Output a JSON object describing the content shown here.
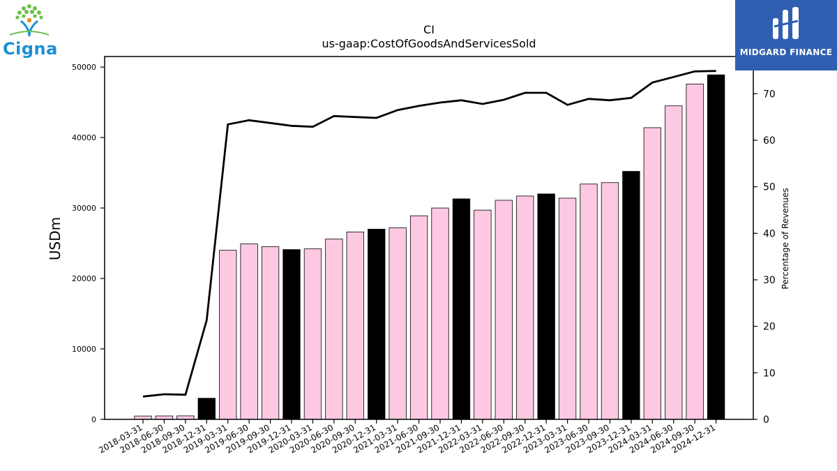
{
  "logos": {
    "left_text": "Cigna",
    "right_text": "MIDGARD FINANCE"
  },
  "chart_data": {
    "type": "bar",
    "title": "CI",
    "subtitle": "us-gaap:CostOfGoodsAndServicesSold",
    "ylabel": "USDm",
    "ylabel_right": "Percentage of Revenues",
    "ylim": [
      0,
      51500
    ],
    "ylim_right": [
      0,
      78
    ],
    "yticks": [
      0,
      10000,
      20000,
      30000,
      40000,
      50000
    ],
    "yticks_right": [
      0,
      10,
      20,
      30,
      40,
      50,
      60,
      70
    ],
    "grid": false,
    "colors": {
      "quarter": "#fcc8e2",
      "year_end": "#000000",
      "line": "#000000"
    },
    "categories": [
      "2018-03-31",
      "2018-06-30",
      "2018-09-30",
      "2018-12-31",
      "2019-03-31",
      "2019-06-30",
      "2019-09-30",
      "2019-12-31",
      "2020-03-31",
      "2020-06-30",
      "2020-09-30",
      "2020-12-31",
      "2021-03-31",
      "2021-06-30",
      "2021-09-30",
      "2021-12-31",
      "2022-03-31",
      "2022-06-30",
      "2022-09-30",
      "2022-12-31",
      "2023-03-31",
      "2023-06-30",
      "2023-09-30",
      "2023-12-31",
      "2024-03-31",
      "2024-06-30",
      "2024-09-30",
      "2024-12-31"
    ],
    "series": [
      {
        "kind": "bar",
        "axis": "left",
        "values": [
          480,
          490,
          500,
          3000,
          24000,
          24900,
          24500,
          24100,
          24200,
          25600,
          26600,
          27000,
          27200,
          28900,
          30000,
          31300,
          29700,
          31100,
          31700,
          32000,
          31400,
          33400,
          33600,
          35200,
          41400,
          44500,
          47600,
          48900
        ],
        "year_end": [
          false,
          false,
          false,
          true,
          false,
          false,
          false,
          true,
          false,
          false,
          false,
          true,
          false,
          false,
          false,
          true,
          false,
          false,
          false,
          true,
          false,
          false,
          false,
          true,
          false,
          false,
          false,
          true
        ]
      },
      {
        "kind": "line",
        "axis": "right",
        "values": [
          4.9,
          5.4,
          5.3,
          21.3,
          63.4,
          64.3,
          63.7,
          63.1,
          62.9,
          65.2,
          65.0,
          64.8,
          66.5,
          67.4,
          68.1,
          68.6,
          67.8,
          68.7,
          70.2,
          70.2,
          67.6,
          68.9,
          68.6,
          69.1,
          72.4,
          73.6,
          74.8,
          74.9
        ]
      }
    ]
  }
}
